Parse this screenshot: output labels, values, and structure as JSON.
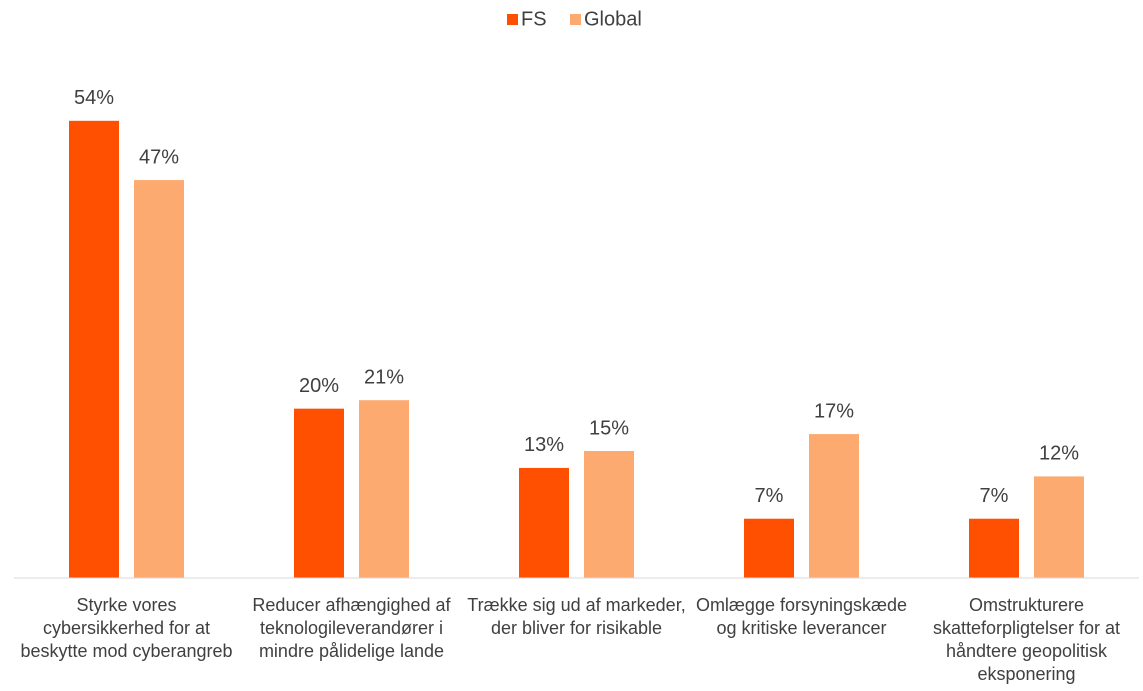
{
  "chart_data": {
    "type": "bar",
    "categories": [
      "Styrke vores cybersikkerhed for at beskytte mod cyberangreb",
      "Reducer afhængighed af teknologileverandører i mindre pålidelige lande",
      "Trække sig ud af markeder, der bliver for risikable",
      "Omlægge forsyningskæde og kritiske leverancer",
      "Omstrukturere skatteforpligtelser for at håndtere geopolitisk eksponering"
    ],
    "series": [
      {
        "name": "FS",
        "color": "#fe5000",
        "values": [
          54,
          20,
          13,
          7,
          7
        ],
        "value_labels": [
          "54%",
          "20%",
          "13%",
          "7%",
          "7%"
        ]
      },
      {
        "name": "Global",
        "color": "#fdaa71",
        "values": [
          47,
          21,
          15,
          17,
          12
        ],
        "value_labels": [
          "47%",
          "21%",
          "15%",
          "17%",
          "12%"
        ]
      }
    ],
    "ylim": [
      0,
      60
    ],
    "legend": "top"
  }
}
